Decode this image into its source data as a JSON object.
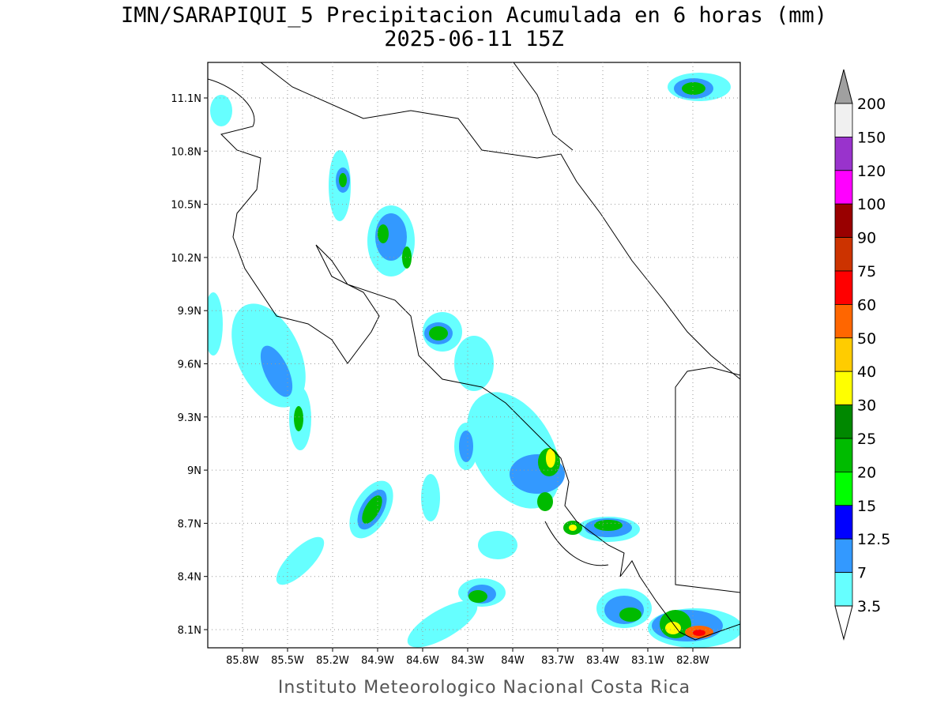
{
  "header": {
    "title": "IMN/SARAPIQUI_5 Precipitacion Acumulada en 6 horas (mm)",
    "subtitle": "2025-06-11 15Z"
  },
  "map": {
    "lon_labels": [
      "85.8W",
      "85.5W",
      "85.2W",
      "84.9W",
      "84.6W",
      "84.3W",
      "84W",
      "83.7W",
      "83.4W",
      "83.1W",
      "82.8W"
    ],
    "lat_labels": [
      "11.1N",
      "10.8N",
      "10.5N",
      "10.2N",
      "9.9N",
      "9.6N",
      "9.3N",
      "9N",
      "8.7N",
      "8.4N",
      "8.1N"
    ]
  },
  "colorbar": {
    "labels": [
      "200",
      "150",
      "120",
      "100",
      "90",
      "75",
      "60",
      "50",
      "40",
      "30",
      "25",
      "20",
      "15",
      "12.5",
      "7",
      "3.5"
    ],
    "colors": [
      "#f0f0f0",
      "#9933cc",
      "#ff00ff",
      "#990000",
      "#cc3300",
      "#ff0000",
      "#ff6600",
      "#ffcc00",
      "#ffff00",
      "#008800",
      "#00bb00",
      "#00ff00",
      "#0000ff",
      "#3399ff",
      "#66ffff"
    ],
    "top_color": "#a0a0a0",
    "bottom_color": "#ffffff"
  },
  "footer": "Instituto Meteorologico Nacional Costa Rica"
}
